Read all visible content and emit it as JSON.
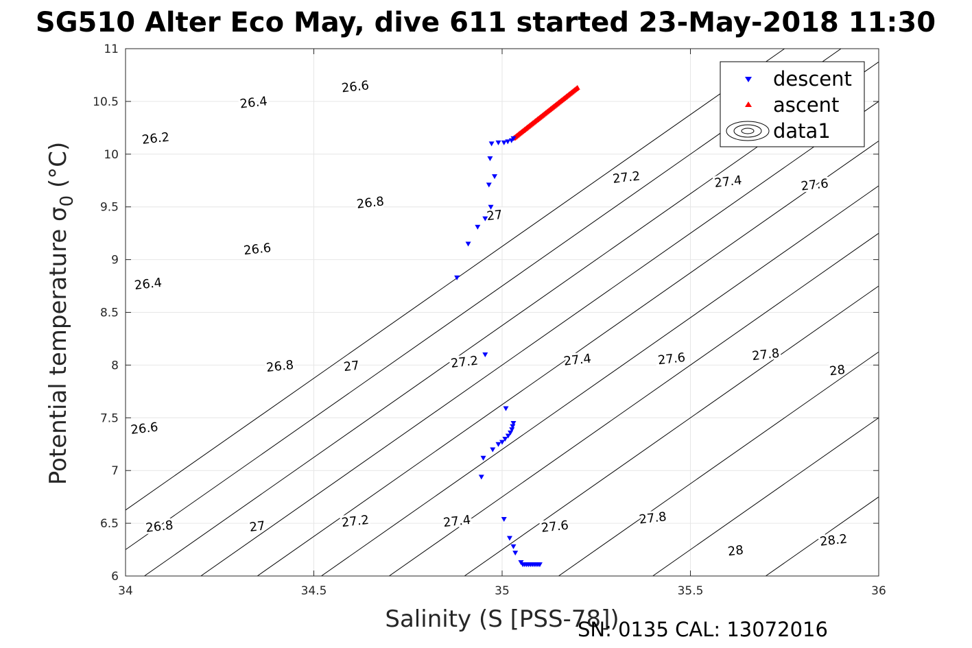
{
  "chart_data": {
    "type": "scatter",
    "title": "SG510 Alter Eco May, dive 611 started 23-May-2018 11:30",
    "xlabel": "Salinity (S [PSS-78])",
    "ylabel": "Potential temperature σ",
    "ylabel_sub": "0",
    "ylabel_unit": " (°C)",
    "xlim": [
      34,
      36
    ],
    "ylim": [
      6,
      11
    ],
    "xticks": [
      34,
      34.5,
      35,
      35.5,
      36
    ],
    "xtick_labels": [
      "34",
      "34.5",
      "35",
      "35.5",
      "36"
    ],
    "yticks": [
      6,
      6.5,
      7,
      7.5,
      8,
      8.5,
      9,
      9.5,
      10,
      10.5,
      11
    ],
    "ytick_labels": [
      "6",
      "6.5",
      "7",
      "7.5",
      "8",
      "8.5",
      "9",
      "9.5",
      "10",
      "10.5",
      "11"
    ],
    "grid": true,
    "legend_position": "top-right",
    "footer": "SN: 0135  CAL: 13072016",
    "series": [
      {
        "name": "descent",
        "marker": "triangle-down",
        "color": "#0000ff",
        "points": [
          [
            34.88,
            8.83
          ],
          [
            34.91,
            9.15
          ],
          [
            34.935,
            9.31
          ],
          [
            34.955,
            9.39
          ],
          [
            34.97,
            9.5
          ],
          [
            34.965,
            9.71
          ],
          [
            34.98,
            9.79
          ],
          [
            34.968,
            9.96
          ],
          [
            34.972,
            10.1
          ],
          [
            34.99,
            10.11
          ],
          [
            35.005,
            10.11
          ],
          [
            35.015,
            10.12
          ],
          [
            35.025,
            10.13
          ],
          [
            35.03,
            10.15
          ],
          [
            34.955,
            8.1
          ],
          [
            35.01,
            7.59
          ],
          [
            35.03,
            7.45
          ],
          [
            35.028,
            7.42
          ],
          [
            35.026,
            7.39
          ],
          [
            35.022,
            7.36
          ],
          [
            35.016,
            7.33
          ],
          [
            35.008,
            7.3
          ],
          [
            35.0,
            7.27
          ],
          [
            34.99,
            7.25
          ],
          [
            34.975,
            7.2
          ],
          [
            34.95,
            7.12
          ],
          [
            34.945,
            6.94
          ],
          [
            35.005,
            6.54
          ],
          [
            35.02,
            6.36
          ],
          [
            35.03,
            6.28
          ],
          [
            35.035,
            6.22
          ],
          [
            35.05,
            6.13
          ],
          [
            35.055,
            6.11
          ],
          [
            35.06,
            6.11
          ],
          [
            35.065,
            6.11
          ],
          [
            35.07,
            6.11
          ],
          [
            35.075,
            6.11
          ],
          [
            35.08,
            6.11
          ],
          [
            35.085,
            6.11
          ],
          [
            35.09,
            6.11
          ],
          [
            35.095,
            6.11
          ],
          [
            35.1,
            6.11
          ]
        ]
      },
      {
        "name": "ascent",
        "marker": "triangle-up",
        "color": "#ff0000",
        "points": "segment",
        "segment_start": [
          35.03,
          10.15
        ],
        "segment_end": [
          35.2,
          10.63
        ],
        "segment_count": 70
      },
      {
        "name": "data1",
        "type": "contour",
        "color": "#000000",
        "levels": [
          {
            "level": "26.2",
            "x_at_ymin": 33.75,
            "labels": [
              [
                34.08,
                10.15
              ]
            ]
          },
          {
            "level": "26.4",
            "x_at_ymin": 33.9,
            "labels": [
              [
                34.06,
                8.77
              ],
              [
                34.34,
                10.49
              ]
            ]
          },
          {
            "level": "26.6",
            "x_at_ymin": 34.05,
            "labels": [
              [
                34.05,
                7.4
              ],
              [
                34.35,
                9.1
              ],
              [
                34.61,
                10.64
              ]
            ]
          },
          {
            "level": "26.8",
            "x_at_ymin": 34.2,
            "labels": [
              [
                34.09,
                6.47
              ],
              [
                34.41,
                7.99
              ],
              [
                34.65,
                9.54
              ]
            ]
          },
          {
            "level": "27",
            "x_at_ymin": 34.35,
            "labels": [
              [
                34.35,
                6.47
              ],
              [
                34.6,
                7.99
              ],
              [
                34.98,
                9.42
              ]
            ]
          },
          {
            "level": "27.2",
            "x_at_ymin": 34.52,
            "labels": [
              [
                34.61,
                6.52
              ],
              [
                34.9,
                8.03
              ],
              [
                35.33,
                9.78
              ]
            ]
          },
          {
            "level": "27.4",
            "x_at_ymin": 34.7,
            "labels": [
              [
                34.88,
                6.52
              ],
              [
                35.2,
                8.05
              ],
              [
                35.6,
                9.74
              ]
            ]
          },
          {
            "level": "27.6",
            "x_at_ymin": 34.9,
            "labels": [
              [
                35.14,
                6.47
              ],
              [
                35.45,
                8.06
              ],
              [
                35.83,
                9.71
              ]
            ]
          },
          {
            "level": "27.8",
            "x_at_ymin": 35.15,
            "labels": [
              [
                35.4,
                6.55
              ],
              [
                35.7,
                8.1
              ]
            ]
          },
          {
            "level": "28",
            "x_at_ymin": 35.4,
            "labels": [
              [
                35.62,
                6.24
              ],
              [
                35.89,
                7.95
              ]
            ]
          },
          {
            "level": "28.2",
            "x_at_ymin": 35.7,
            "labels": [
              [
                35.88,
                6.34
              ]
            ]
          }
        ]
      }
    ]
  }
}
